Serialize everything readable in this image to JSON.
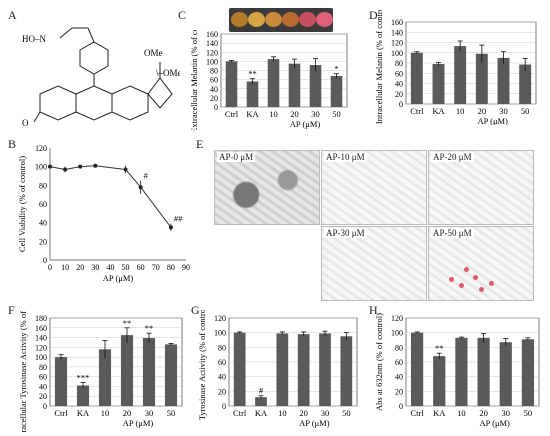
{
  "labels": {
    "A": "A",
    "B": "B",
    "C": "C",
    "D": "D",
    "E": "E",
    "F": "F",
    "G": "G",
    "H": "H"
  },
  "structure": {
    "oxime": "HO–N",
    "methyl": "/",
    "ome1": "OMe",
    "ome2": "\\–OMe"
  },
  "plate_colors": [
    "#b37a2a",
    "#d4a445",
    "#c98a3a",
    "#b86a30",
    "#c75060",
    "#e0607a"
  ],
  "micrographs": [
    {
      "label": "AP-0 μM",
      "style": "dark"
    },
    {
      "label": "AP-10 μM",
      "style": "light"
    },
    {
      "label": "AP-20 μM",
      "style": "light"
    },
    {
      "label": "AP-30 μM",
      "style": "light"
    },
    {
      "label": "AP-50 μM",
      "style": "light"
    }
  ],
  "chart_data": [
    {
      "id": "B",
      "type": "line",
      "xlabel": "AP (μM)",
      "ylabel": "Cell Viability (% of control)",
      "x": [
        0,
        10,
        20,
        30,
        50,
        60,
        80
      ],
      "values": [
        100,
        97,
        100,
        101,
        97,
        78,
        35
      ],
      "err": [
        2,
        3,
        2,
        2,
        4,
        7,
        4
      ],
      "annot": [
        "",
        "",
        "",
        "",
        "",
        "#",
        "##"
      ],
      "xlim": [
        0,
        90
      ],
      "ylim": [
        0,
        120
      ],
      "xticks": [
        0,
        10,
        20,
        30,
        40,
        50,
        60,
        70,
        80,
        90
      ],
      "yticks": [
        0,
        20,
        40,
        60,
        80,
        100,
        120
      ]
    },
    {
      "id": "C",
      "type": "bar",
      "ylabel": "Extracellular Melanin (% of control)",
      "xlabel": "AP (μM)",
      "categories": [
        "Ctrl",
        "KA",
        "10",
        "20",
        "30",
        "50"
      ],
      "values": [
        100,
        56,
        105,
        95,
        92,
        68
      ],
      "err": [
        2,
        6,
        5,
        10,
        14,
        5
      ],
      "annot": [
        "",
        "**",
        "",
        "",
        "",
        "*"
      ],
      "ylim": [
        0,
        160
      ],
      "yticks": [
        0,
        20,
        40,
        60,
        80,
        100,
        120,
        140,
        160
      ]
    },
    {
      "id": "D",
      "type": "bar",
      "ylabel": "Intracellular Melanin (% of control)",
      "xlabel": "AP (μM)",
      "categories": [
        "Ctrl",
        "KA",
        "10",
        "20",
        "30",
        "50"
      ],
      "values": [
        100,
        78,
        113,
        98,
        90,
        77
      ],
      "err": [
        2,
        3,
        10,
        17,
        12,
        12
      ],
      "annot": [
        "",
        "",
        "",
        "",
        "",
        ""
      ],
      "ylim": [
        0,
        160
      ],
      "yticks": [
        0,
        20,
        40,
        60,
        80,
        100,
        120,
        140,
        160
      ]
    },
    {
      "id": "F",
      "type": "bar",
      "ylabel": "Intracellular Tyrosinase Activity (% of control)",
      "xlabel": "AP (μM)",
      "categories": [
        "Ctrl",
        "KA",
        "10",
        "20",
        "30",
        "50"
      ],
      "values": [
        100,
        42,
        116,
        145,
        139,
        126
      ],
      "err": [
        5,
        6,
        18,
        15,
        10,
        2
      ],
      "annot": [
        "",
        "***",
        "",
        "**",
        "**",
        ""
      ],
      "ylim": [
        0,
        180
      ],
      "yticks": [
        0,
        20,
        40,
        60,
        80,
        100,
        120,
        140,
        160,
        180
      ]
    },
    {
      "id": "G",
      "type": "bar",
      "ylabel": "Tyrosinase Activity (% of control)",
      "xlabel": "AP (μM)",
      "categories": [
        "Ctrl",
        "KA",
        "10",
        "20",
        "30",
        "50"
      ],
      "values": [
        100,
        12,
        99,
        98,
        99,
        95
      ],
      "err": [
        1,
        2,
        2,
        3,
        3,
        5
      ],
      "annot": [
        "",
        "#",
        "",
        "",
        "",
        ""
      ],
      "ylim": [
        0,
        120
      ],
      "yticks": [
        0,
        20,
        40,
        60,
        80,
        100,
        120
      ]
    },
    {
      "id": "H",
      "type": "bar",
      "ylabel": "Abs at 632nm (% of control)",
      "xlabel": "AP (μM)",
      "categories": [
        "Ctrl",
        "KA",
        "10",
        "20",
        "30",
        "50"
      ],
      "values": [
        100,
        68,
        93,
        93,
        87,
        91
      ],
      "err": [
        1,
        4,
        1,
        6,
        5,
        2
      ],
      "annot": [
        "",
        "**",
        "",
        "",
        "",
        ""
      ],
      "ylim": [
        0,
        120
      ],
      "yticks": [
        0,
        20,
        40,
        60,
        80,
        100,
        120
      ]
    }
  ]
}
